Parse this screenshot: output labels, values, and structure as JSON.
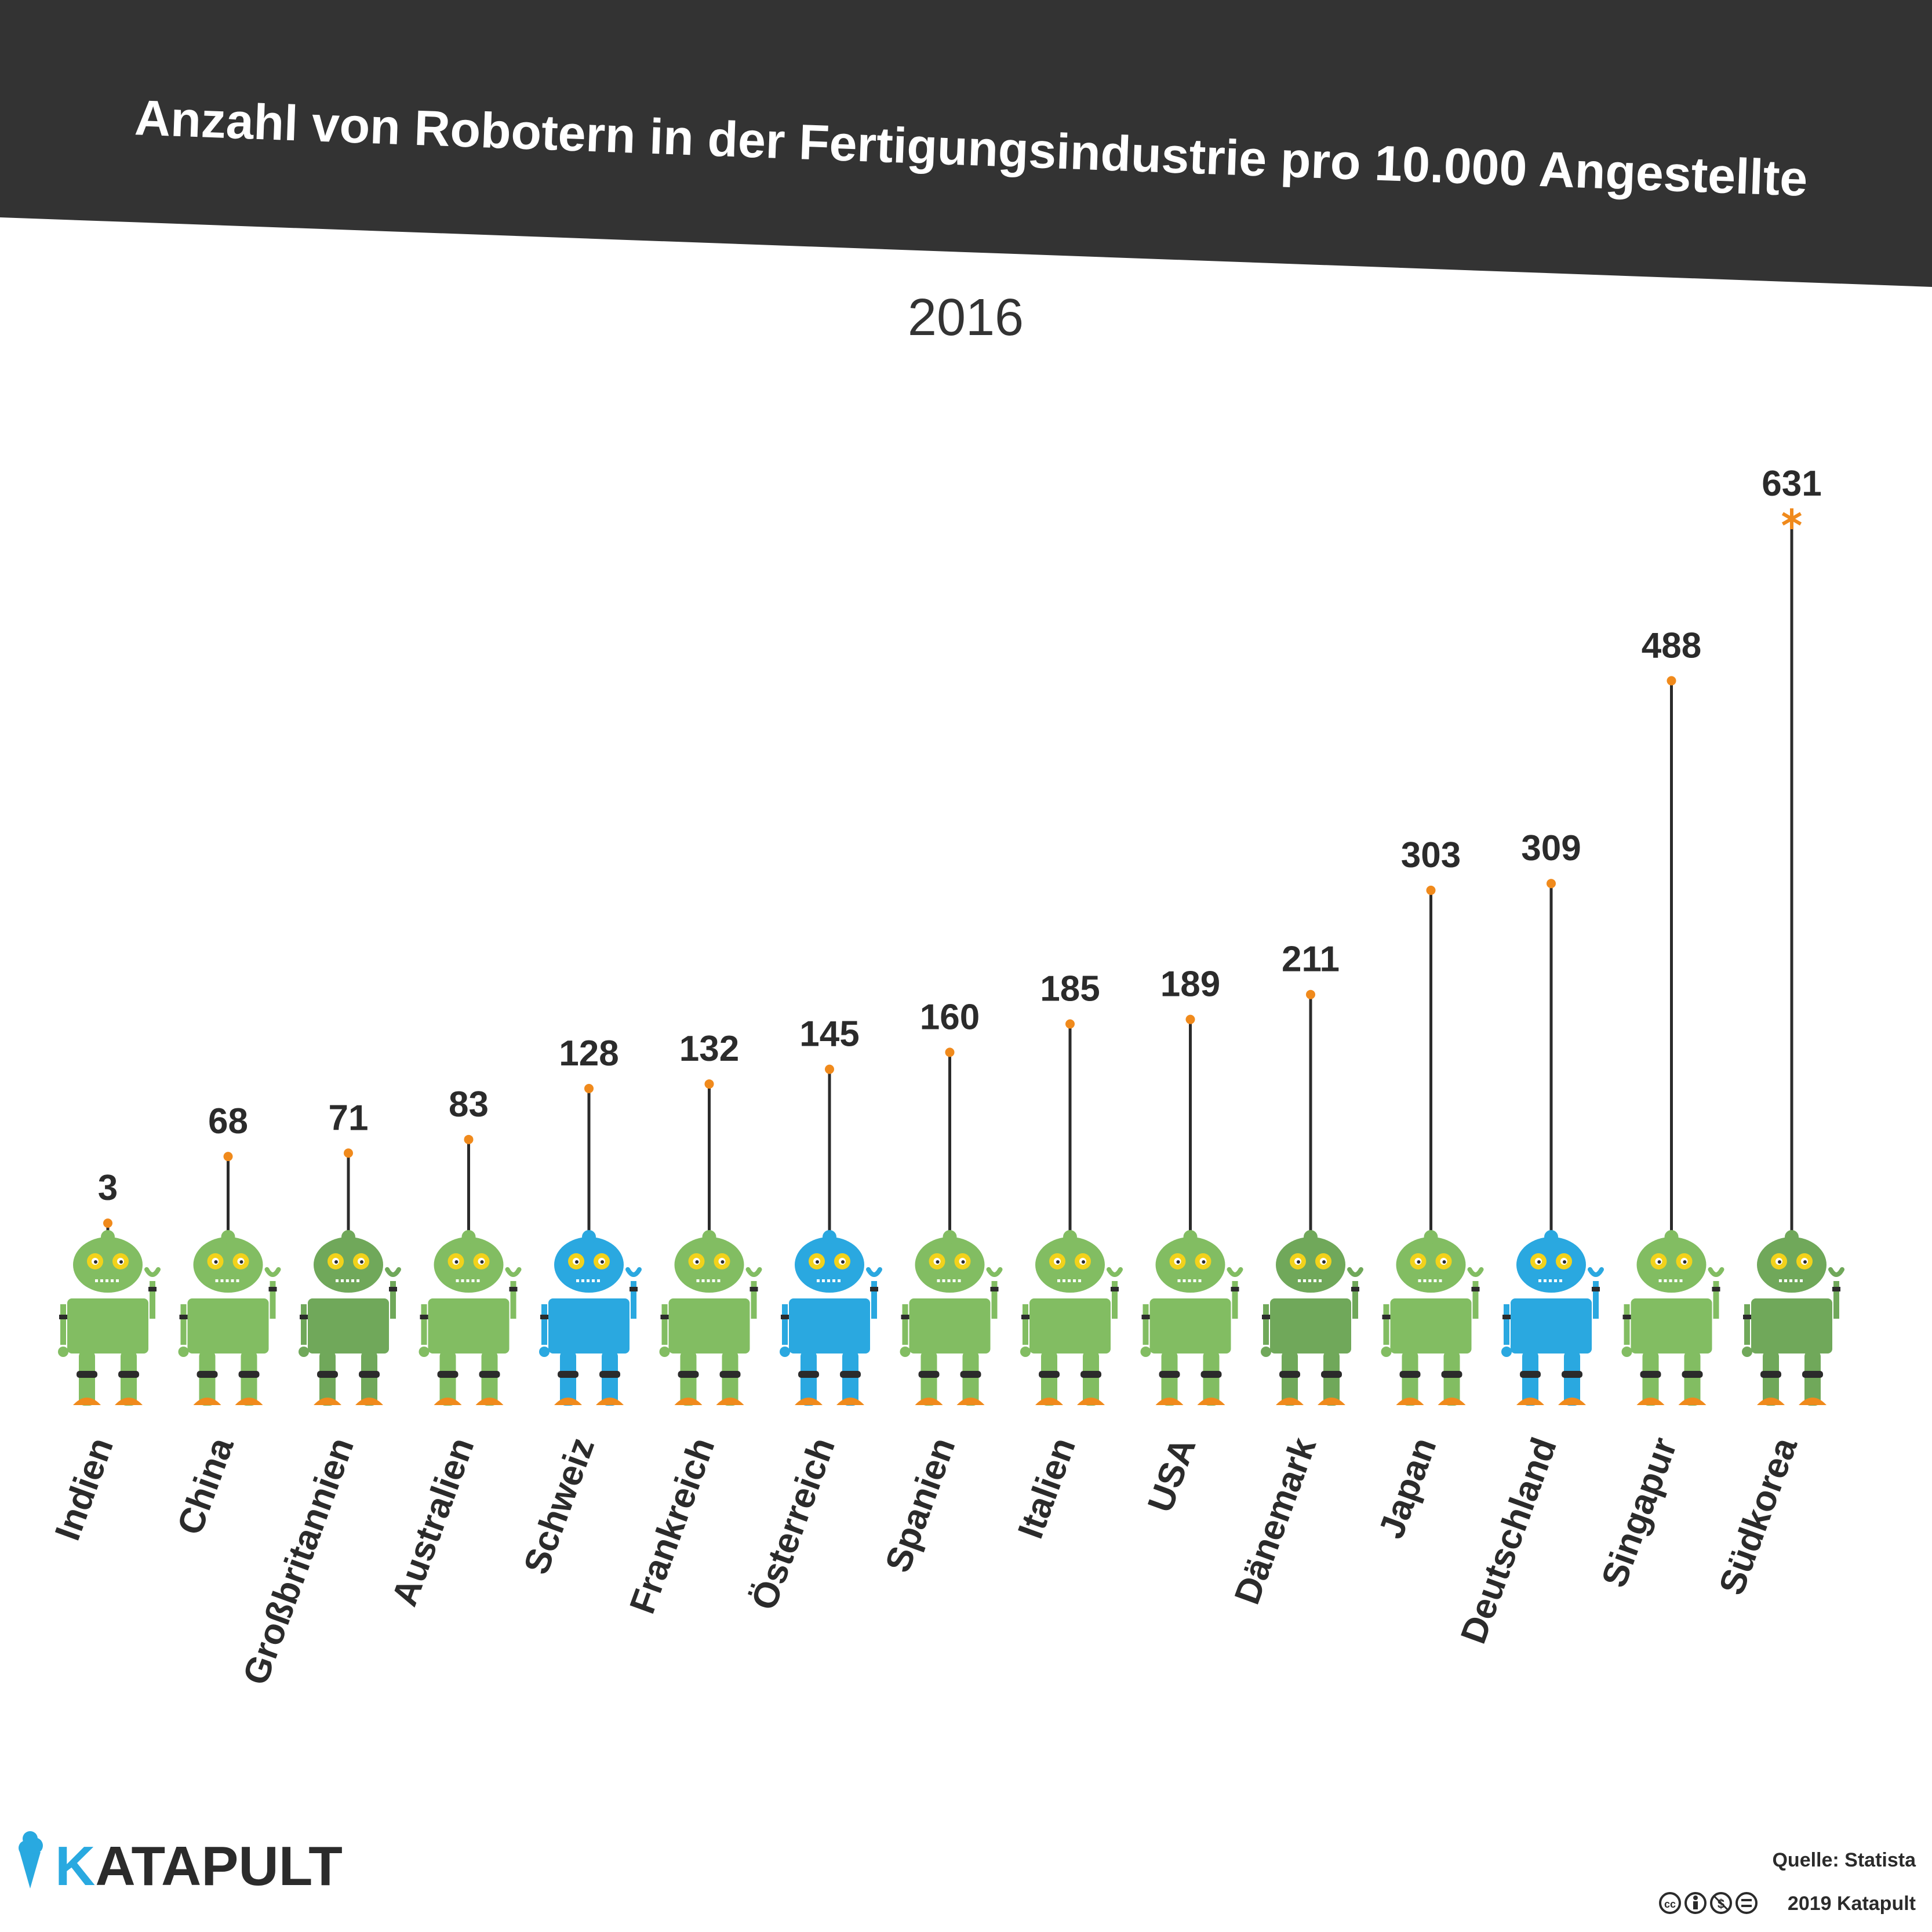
{
  "header": {
    "title": "Anzahl von Robotern in der Fertigungsindustrie pro 10.000 Angestellte"
  },
  "colors": {
    "header_bg": "#333333",
    "robot_green": "#82bd62",
    "robot_green_dark": "#70a85a",
    "robot_blue": "#2aa8e0",
    "foot_orange": "#f08a1c",
    "dot_orange": "#f08a1c",
    "line": "#2b2b2b",
    "brand_blue": "#29a9e0",
    "brand_dark": "#2b2b2b"
  },
  "chart_data": {
    "type": "bar",
    "title": "Anzahl von Robotern in der Fertigungsindustrie pro 10.000 Angestellte",
    "subtitle": "2016",
    "xlabel": "",
    "ylabel": "",
    "ylim": [
      0,
      631
    ],
    "grid": false,
    "categories": [
      "Indien",
      "China",
      "Großbritannien",
      "Australien",
      "Schweiz",
      "Frankreich",
      "Österreich",
      "Spanien",
      "Italien",
      "USA",
      "Dänemark",
      "Japan",
      "Deutschland",
      "Singapur",
      "Südkorea"
    ],
    "values": [
      3,
      68,
      71,
      83,
      128,
      132,
      145,
      160,
      185,
      189,
      211,
      303,
      309,
      488,
      631
    ],
    "value_labels": [
      "3",
      "68",
      "71",
      "83",
      "128",
      "132",
      "145",
      "160",
      "185",
      "189",
      "211",
      "303",
      "309",
      "488",
      "631"
    ],
    "robot_colors": [
      "green",
      "green",
      "green-dark",
      "green",
      "blue",
      "green",
      "blue",
      "green",
      "green",
      "green",
      "green-dark",
      "green",
      "blue",
      "green",
      "green-dark"
    ],
    "max_marker": "asterisk"
  },
  "footer": {
    "brand_initial": "K",
    "brand_rest": "ATAPULT",
    "source": "Quelle: Statista",
    "license_icons": [
      "cc-icon",
      "by-icon",
      "nc-icon",
      "nd-icon"
    ],
    "copyright": "2019 Katapult"
  }
}
